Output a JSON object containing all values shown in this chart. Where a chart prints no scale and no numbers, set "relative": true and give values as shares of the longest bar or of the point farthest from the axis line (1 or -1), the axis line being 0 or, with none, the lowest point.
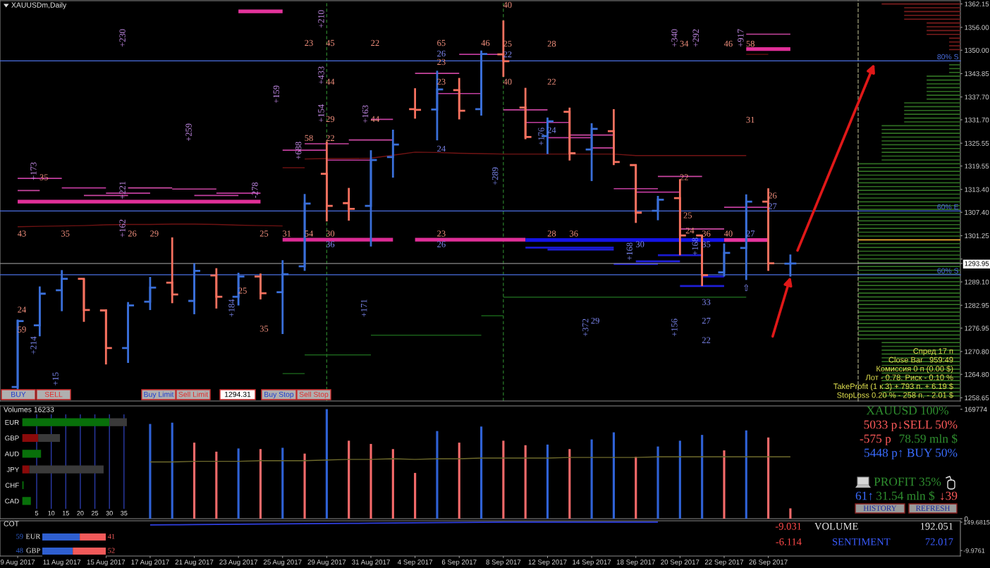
{
  "chart_data": [
    {
      "type": "candlestick",
      "title": "XAUUSDm,Daily",
      "categories": [
        "9 Aug 2017",
        null,
        "11 Aug 2017",
        null,
        "15 Aug 2017",
        null,
        "17 Aug 2017",
        null,
        "21 Aug 2017",
        null,
        "23 Aug 2017",
        null,
        "25 Aug 2017",
        null,
        "29 Aug 2017",
        null,
        "31 Aug 2017",
        null,
        "4 Sep 2017",
        null,
        "6 Sep 2017",
        null,
        "8 Sep 2017",
        null,
        "12 Sep 2017",
        null,
        "14 Sep 2017",
        null,
        "18 Sep 2017",
        null,
        "20 Sep 2017",
        null,
        "22 Sep 2017",
        null,
        "26 Sep 2017",
        null
      ],
      "ohlc": [
        [
          1261.5,
          1279.2,
          1260.8,
          1278.8
        ],
        [
          1277.7,
          1287.9,
          1274.8,
          1286.0
        ],
        [
          1286.9,
          1292.2,
          1281.4,
          1289.9
        ],
        [
          1289.9,
          1289.9,
          1278.6,
          1281.7
        ],
        [
          1281.6,
          1281.9,
          1267.4,
          1271.7
        ],
        [
          1271.7,
          1283.8,
          1267.8,
          1282.9
        ],
        [
          1283.9,
          1290.4,
          1281.7,
          1287.6
        ],
        [
          1288.9,
          1300.8,
          1283.5,
          1285.8
        ],
        [
          1284.1,
          1294.0,
          1280.6,
          1292.0
        ],
        [
          1290.8,
          1292.7,
          1282.1,
          1285.2
        ],
        [
          1285.2,
          1291.5,
          1282.9,
          1290.5
        ],
        [
          1290.5,
          1291.3,
          1284.5,
          1286.1
        ],
        [
          1286.4,
          1294.8,
          1275.4,
          1291.1
        ],
        [
          1293.2,
          1312.2,
          1292.0,
          1309.7
        ],
        [
          1317.5,
          1326.0,
          1305.0,
          1309.1
        ],
        [
          1309.8,
          1313.8,
          1305.2,
          1308.3
        ],
        [
          1309.1,
          1323.7,
          1298.4,
          1321.1
        ],
        [
          1321.9,
          1329.1,
          1316.5,
          1325.2
        ],
        [
          1334.5,
          1340.0,
          1332.0,
          1334.3
        ],
        [
          1334.4,
          1344.6,
          1326.3,
          1339.7
        ],
        [
          1339.5,
          1342.7,
          1331.8,
          1334.1
        ],
        [
          1334.5,
          1349.9,
          1332.8,
          1349.0
        ],
        [
          1348.9,
          1357.8,
          1343.0,
          1347.1
        ],
        [
          1334.9,
          1340.1,
          1326.6,
          1327.2
        ],
        [
          1327.4,
          1332.3,
          1322.7,
          1331.3
        ],
        [
          1333.8,
          1334.9,
          1321.0,
          1322.9
        ],
        [
          1323.9,
          1330.8,
          1315.6,
          1329.3
        ],
        [
          1328.7,
          1334.5,
          1319.8,
          1320.6
        ],
        [
          1319.8,
          1319.8,
          1304.6,
          1307.3
        ],
        [
          1307.8,
          1311.7,
          1305.3,
          1310.7
        ],
        [
          1311.1,
          1316.1,
          1296.1,
          1301.3
        ],
        [
          1301.3,
          1301.3,
          1288.0,
          1290.9
        ],
        [
          1291.6,
          1299.2,
          1290.5,
          1296.7
        ],
        [
          1298.0,
          1312.1,
          1289.6,
          1310.2
        ],
        [
          1310.2,
          1313.7,
          1292.0,
          1294.0
        ],
        [
          1293.9,
          1296.3,
          1290.5,
          1293.95
        ]
      ],
      "colors": [
        "#3a6fd9",
        "#3a6fd9",
        "#3a6fd9",
        "#f6715f",
        "#f6715f",
        "#3a6fd9",
        "#3a6fd9",
        "#f6715f",
        "#3a6fd9",
        "#f6715f",
        "#3a6fd9",
        "#f6715f",
        "#3a6fd9",
        "#3a6fd9",
        "#f6715f",
        "#f6715f",
        "#3a6fd9",
        "#3a6fd9",
        "#f6715f",
        "#3a6fd9",
        "#f6715f",
        "#3a6fd9",
        "#f6715f",
        "#f6715f",
        "#3a6fd9",
        "#f6715f",
        "#3a6fd9",
        "#f6715f",
        "#f6715f",
        "#3a6fd9",
        "#f6715f",
        "#f6715f",
        "#3a6fd9",
        "#3a6fd9",
        "#f6715f",
        "#3a6fd9"
      ],
      "series": [
        {
          "type": "line",
          "color": "#c23f9f",
          "values": [
            1316.3,
            1316.3,
            1316.3,
            null,
            1312.4,
            1312.4,
            1312.4,
            null,
            1311.8,
            1311.8,
            1311.8,
            null,
            1323.7,
            1323.7,
            1323.7,
            null,
            1331.8,
            1331.8,
            null,
            1338.6,
            1338.6,
            1338.6,
            null,
            1331.0,
            1331.0,
            1331.0,
            null,
            1313.6,
            1313.6,
            1313.6,
            null,
            null,
            1308.7,
            1308.7,
            1308.7,
            null
          ]
        },
        {
          "type": "line",
          "color": "#c8459f",
          "values": [
            1313.1,
            1313.1,
            null,
            1311.8,
            1311.8,
            1311.8,
            null,
            1313.5,
            1313.5,
            1313.5,
            null,
            null,
            null,
            1325.4,
            1325.4,
            1325.4,
            null,
            null,
            1343.9,
            1343.9,
            1343.9,
            null,
            1334.3,
            1334.3,
            1334.3,
            null,
            1324.3,
            1324.3,
            null,
            1316.8,
            1316.8,
            1316.8,
            null,
            1354.2,
            1354.2,
            1354.2
          ]
        },
        {
          "type": "line",
          "color": "#bd3a9b",
          "values": [
            null,
            null,
            1313.8,
            1313.8,
            1313.8,
            null,
            null,
            null,
            null,
            1312.4,
            1312.4,
            1312.4,
            null,
            null,
            1321.1,
            1321.1,
            1321.1,
            null,
            null,
            null,
            1348.9,
            1348.9,
            1348.9,
            null,
            1327.0,
            1327.0,
            1327.0,
            null,
            1312.7,
            1312.7,
            1312.7,
            null,
            null,
            null,
            null,
            null
          ]
        },
        {
          "type": "line",
          "color": "#cc4aa3",
          "values": [
            null,
            null,
            null,
            null,
            null,
            1313.8,
            1313.8,
            1313.8,
            null,
            null,
            null,
            null,
            null,
            null,
            null,
            1326.4,
            1326.4,
            1326.4,
            null,
            null,
            null,
            null,
            null,
            null,
            null,
            1327.7,
            1327.7,
            1327.7,
            null,
            null,
            1303.0,
            1303.0,
            1303.0,
            null,
            null,
            null
          ]
        },
        {
          "type": "line",
          "color": "#e02f98",
          "values": [
            1310.2,
            1310.2,
            1310.2,
            1310.2,
            1310.2,
            1310.2,
            1310.2,
            1310.2,
            1310.2,
            1310.2,
            1310.2,
            1310.2,
            null,
            null,
            null,
            null,
            null,
            null,
            1300.2,
            1300.2,
            1300.2,
            1300.2,
            1300.2,
            1300.2,
            null,
            null,
            null,
            null,
            null,
            null,
            null,
            null,
            null,
            1350.3,
            1350.3,
            1350.3
          ]
        },
        {
          "type": "line",
          "color": "#e4339c",
          "values": [
            null,
            null,
            null,
            null,
            null,
            null,
            null,
            null,
            null,
            null,
            1360.2,
            1360.2,
            1360.2,
            null,
            null,
            null,
            null,
            null,
            null,
            null,
            null,
            null,
            null,
            null,
            null,
            null,
            null,
            null,
            null,
            null,
            null,
            null,
            1300.1,
            1300.1,
            1300.1,
            null
          ]
        },
        {
          "type": "line",
          "color": "#dc2b94",
          "values": [
            null,
            null,
            null,
            null,
            null,
            null,
            null,
            null,
            null,
            null,
            null,
            null,
            1300.2,
            1300.2,
            1300.2,
            1300.2,
            1300.2,
            1300.2,
            null,
            null,
            null,
            null,
            null,
            null,
            null,
            null,
            null,
            null,
            null,
            null,
            null,
            null,
            null,
            null,
            null,
            null
          ]
        },
        {
          "type": "line",
          "color": "#1414e6",
          "values": [
            null,
            null,
            null,
            null,
            null,
            null,
            null,
            null,
            null,
            null,
            null,
            null,
            null,
            null,
            null,
            null,
            null,
            null,
            null,
            null,
            null,
            null,
            null,
            1300.1,
            1300.1,
            1300.1,
            1300.1,
            1300.1,
            1300.1,
            1300.1,
            1300.1,
            1300.1,
            1300.1,
            null,
            null,
            null
          ]
        },
        {
          "type": "line",
          "color": "#1a1ad0",
          "values": [
            null,
            null,
            null,
            null,
            null,
            null,
            null,
            null,
            null,
            null,
            null,
            null,
            null,
            null,
            null,
            null,
            null,
            null,
            null,
            null,
            null,
            null,
            null,
            1298.1,
            1298.1,
            1298.1,
            1298.1,
            1298.1,
            null,
            1296.1,
            1296.1,
            1296.1,
            null,
            null,
            null,
            null
          ]
        },
        {
          "type": "line",
          "color": "#1e1ed6",
          "values": [
            null,
            null,
            null,
            null,
            null,
            null,
            null,
            null,
            null,
            null,
            null,
            null,
            null,
            null,
            null,
            null,
            null,
            null,
            null,
            null,
            null,
            null,
            null,
            null,
            1297.6,
            1297.6,
            1297.6,
            1297.6,
            null,
            null,
            1288.0,
            1288.0,
            1288.0,
            null,
            null,
            null
          ]
        },
        {
          "type": "line",
          "color": "#1616ca",
          "values": [
            null,
            null,
            null,
            null,
            null,
            null,
            null,
            null,
            null,
            null,
            null,
            null,
            null,
            null,
            null,
            null,
            null,
            null,
            null,
            null,
            null,
            null,
            null,
            null,
            null,
            null,
            null,
            1293.8,
            1293.8,
            1293.8,
            null,
            1290.5,
            1290.5,
            null,
            null,
            null
          ]
        },
        {
          "type": "line",
          "color": "#2222dc",
          "values": [
            null,
            null,
            null,
            null,
            null,
            null,
            null,
            null,
            null,
            null,
            null,
            null,
            null,
            null,
            null,
            null,
            null,
            null,
            null,
            null,
            null,
            null,
            null,
            null,
            null,
            null,
            null,
            null,
            1294.5,
            1294.5,
            1294.5,
            null,
            null,
            null,
            null,
            null
          ]
        },
        {
          "type": "line",
          "color": "#6e1212",
          "values": [
            1303.6,
            1303.7,
            1303.8,
            1303.9,
            1304.1,
            1304.2,
            1304.2,
            1304.3,
            1304.3,
            1304.2,
            1304.0,
            1303.9,
            1303.8,
            null,
            null,
            null,
            null,
            null,
            null,
            null,
            null,
            null,
            null,
            null,
            null,
            null,
            null,
            null,
            null,
            null,
            null,
            null,
            null,
            null,
            null,
            null
          ]
        },
        {
          "type": "line",
          "color": "#721414",
          "values": [
            null,
            null,
            null,
            null,
            null,
            null,
            null,
            null,
            null,
            null,
            null,
            null,
            null,
            1321.4,
            1321.5,
            1321.5,
            1321.6,
            1322.4,
            1323.2,
            1323.1,
            1322.9,
            1322.8,
            1322.7,
            1322.7,
            1322.7,
            1322.7,
            1322.7,
            1322.7,
            1322.3,
            1322.3,
            1322.3,
            1322.3,
            1322.3,
            1322.3,
            null,
            null
          ]
        },
        {
          "type": "line",
          "color": "#6a1010",
          "values": [
            null,
            null,
            null,
            null,
            null,
            null,
            null,
            null,
            null,
            null,
            null,
            null,
            1319.1,
            1319.1,
            null,
            null,
            null,
            null,
            null,
            null,
            null,
            null,
            null,
            null,
            null,
            null,
            null,
            null,
            null,
            null,
            null,
            null,
            null,
            1348.9,
            1348.9,
            null
          ]
        },
        {
          "type": "line",
          "color": "#1d6e1d",
          "values": [
            null,
            null,
            null,
            null,
            null,
            null,
            null,
            null,
            null,
            null,
            null,
            null,
            1265.0,
            1265.0,
            null,
            null,
            1275.1,
            1275.1,
            1275.1,
            1275.1,
            1275.1,
            1275.1,
            null,
            null,
            null,
            null,
            null,
            null,
            null,
            null,
            null,
            null,
            null,
            null,
            null,
            null
          ]
        },
        {
          "type": "line",
          "color": "#207220",
          "values": [
            null,
            null,
            null,
            null,
            null,
            null,
            null,
            null,
            null,
            null,
            null,
            null,
            null,
            1269.9,
            1269.9,
            1269.9,
            1269.9,
            null,
            null,
            null,
            null,
            null,
            1285.1,
            1285.1,
            1285.1,
            1285.1,
            1285.1,
            1285.1,
            1285.1,
            1285.1,
            1285.1,
            1285.1,
            1285.1,
            1285.1,
            null,
            null
          ]
        },
        {
          "type": "line",
          "color": "#1a6a1a",
          "values": [
            null,
            null,
            null,
            null,
            null,
            null,
            null,
            null,
            null,
            null,
            null,
            null,
            null,
            null,
            null,
            null,
            null,
            null,
            null,
            null,
            null,
            1280.2,
            1280.2,
            null,
            null,
            null,
            null,
            null,
            null,
            null,
            null,
            null,
            null,
            null,
            null,
            null
          ]
        }
      ],
      "ylim": [
        1257.8,
        1363.0
      ],
      "tick_labels": false,
      "ref_lines": [
        {
          "axis": "y",
          "value": 1347.2,
          "label": "80% S",
          "color": "#4a6ee0"
        },
        {
          "axis": "y",
          "value": 1307.75,
          "label": "60% E",
          "color": "#4a6ee0"
        },
        {
          "axis": "y",
          "value": 1290.97,
          "label": "60% S",
          "color": "#4a6ee0"
        },
        {
          "axis": "y",
          "value": 1293.95,
          "color": "#8a8a8a"
        },
        {
          "axis": "x",
          "value": "29 Aug 2017",
          "color": "#2e8b2e",
          "line_style": "dashed"
        },
        {
          "axis": "x",
          "value": "8 Sep 2017",
          "color": "#2e8b2e",
          "line_style": "dashed"
        }
      ],
      "annotations": [
        "+230",
        "+210",
        "+433",
        "+159",
        "+154",
        "+163",
        "+259",
        "+688",
        "+173",
        "+221",
        "-278",
        "+162",
        "+340",
        "+292",
        "+917",
        "+289",
        "+184",
        "+171",
        "+214",
        "+15",
        "+176",
        "+168",
        "+168",
        "+372",
        "+156",
        "23",
        "45",
        "22",
        "65",
        "46",
        "23",
        "44",
        "23",
        "29",
        "44",
        "58",
        "22",
        "35",
        "43",
        "35",
        "26",
        "29",
        "25",
        "31",
        "54",
        "30",
        "23",
        "25",
        "24",
        "59",
        "35",
        "40",
        "25",
        "28",
        "34",
        "46",
        "58",
        "40",
        "22",
        "31",
        "22",
        "26",
        "25",
        "28",
        "36",
        "24",
        "36",
        "40",
        "26",
        "24",
        "36",
        "26",
        "22",
        "24",
        "27",
        "27",
        "30",
        "35",
        "33",
        "27",
        "22",
        "29",
        "⇧"
      ]
    },
    {
      "type": "bar",
      "title": "Volumes 16233",
      "categories": [
        null,
        null,
        null,
        null,
        null,
        null,
        null,
        null,
        null,
        null,
        null,
        null,
        null,
        null,
        null,
        null,
        null,
        null,
        null,
        null,
        null,
        null,
        null,
        null,
        null,
        null,
        null,
        null,
        null,
        null,
        null,
        null,
        null,
        null,
        null,
        null
      ],
      "series": [
        {
          "type": "bar",
          "values": [
            null,
            null,
            null,
            null,
            null,
            null,
            147000,
            149000,
            118000,
            104000,
            109000,
            108000,
            110000,
            101000,
            170000,
            121000,
            116000,
            108000,
            71000,
            136000,
            118000,
            143000,
            121000,
            114000,
            115000,
            108000,
            123000,
            134000,
            96000,
            112000,
            121000,
            130000,
            106000,
            137000,
            126000,
            16000
          ],
          "colors": [
            null,
            null,
            null,
            null,
            null,
            null,
            "#2f62d6",
            "#2f62d6",
            "#f56a6a",
            "#f56a6a",
            "#2f62d6",
            "#f56a6a",
            "#2f62d6",
            "#f56a6a",
            "#2f62d6",
            "#f56a6a",
            "#f56a6a",
            "#f56a6a",
            "#f56a6a",
            "#2f62d6",
            "#f56a6a",
            "#2f62d6",
            "#f56a6a",
            "#f56a6a",
            "#2f62d6",
            "#f56a6a",
            "#2f62d6",
            "#2f62d6",
            "#f56a6a",
            "#2f62d6",
            "#2f62d6",
            "#2f62d6",
            "#f56a6a",
            "#2f62d6",
            "#f56a6a",
            "#f56a6a"
          ]
        },
        {
          "type": "line",
          "color": "#6e6a2c",
          "values": [
            null,
            null,
            null,
            null,
            null,
            null,
            88000,
            88000,
            89000,
            89000,
            89000,
            90000,
            90000,
            90000,
            91000,
            92000,
            92000,
            93000,
            92000,
            93000,
            93000,
            94000,
            94000,
            94000,
            94000,
            95000,
            95000,
            95000,
            95000,
            96000,
            96000,
            96000,
            96000,
            96000,
            96000,
            96000
          ]
        }
      ],
      "ylim": [
        0,
        175000
      ],
      "yticks": [
        0,
        169774
      ],
      "tick_labels": "y"
    },
    {
      "type": "bar",
      "orientation": "horizontal",
      "stacked": true,
      "categories": [
        "EUR",
        "GBP",
        "AUD",
        "JPY",
        "CHF",
        "CAD"
      ],
      "series": [
        {
          "color": "#08700a",
          "values": [
            30,
            null,
            6.5,
            null,
            0.5,
            3
          ]
        },
        {
          "color": "#8a0a0a",
          "values": [
            null,
            5.5,
            null,
            2.5,
            null,
            null
          ]
        },
        {
          "color": "#3a3a3a",
          "values": [
            6,
            7.5,
            null,
            25.5,
            null,
            null
          ]
        }
      ],
      "xlim": [
        0,
        36.5
      ],
      "xticks": [
        5,
        10,
        15,
        20,
        25,
        30,
        35
      ],
      "grid": "x"
    },
    {
      "type": "line",
      "title": "COT",
      "categories": [
        "9 Aug 2017",
        null,
        "11 Aug 2017",
        null,
        "15 Aug 2017",
        null,
        "17 Aug 2017",
        null,
        "21 Aug 2017",
        null,
        "23 Aug 2017",
        null,
        "25 Aug 2017",
        null,
        "29 Aug 2017",
        null,
        "31 Aug 2017",
        null,
        "4 Sep 2017",
        null,
        "6 Sep 2017",
        null,
        "8 Sep 2017",
        null,
        "12 Sep 2017",
        null,
        "14 Sep 2017",
        null,
        "18 Sep 2017",
        null,
        "20 Sep 2017",
        null,
        "22 Sep 2017",
        null,
        "26 Sep 2017",
        null
      ],
      "series": [
        {
          "color": "#2f3fe0",
          "values": [
            null,
            null,
            null,
            null,
            null,
            null,
            134,
            135,
            136,
            137,
            138,
            139,
            140,
            141,
            142,
            143,
            144,
            145,
            146,
            147,
            148,
            149,
            150,
            150,
            150,
            150,
            150,
            150,
            150,
            150,
            null,
            null,
            null,
            null,
            null,
            null
          ]
        }
      ],
      "ylim": [
        -41,
        157.5
      ],
      "yticks": [
        149.6815,
        -9.9761
      ]
    },
    {
      "type": "bar",
      "orientation": "horizontal",
      "stacked": true,
      "categories": [
        "EUR",
        "GBP"
      ],
      "series": [
        {
          "color": "#2f5fd0",
          "values": [
            59,
            48
          ],
          "value_labels": [
            "59",
            "48"
          ]
        },
        {
          "color": "#f25a5a",
          "values": [
            41,
            52
          ],
          "value_labels": [
            "41",
            "52"
          ]
        }
      ]
    },
    {
      "type": "other",
      "annotations": [
        "BUY",
        "SELL",
        "Buy Limit",
        "Sell Limit",
        "1294.31",
        "Buy Stop",
        "Sell Stop"
      ]
    },
    {
      "type": "other",
      "annotations": [
        "Спред 17 п",
        "Close Bar   959:49",
        "Комиссия 0 п (0.00 $)",
        "Лот - 0.78. Риск - 0.10 %",
        "TakeProfit (1 к 3) + 793 п. + 6.19 $",
        "StopLoss 0.20 % - 258 п. - 2.01 $"
      ]
    },
    {
      "type": "other",
      "annotations": [
        "XAUUSD 100%",
        "5033 p↓SELL 50%",
        "-575 p",
        "78.59 mln $",
        "5448 p↑ BUY 50%",
        "PROFIT 35%",
        "61↑",
        "31.54 mln $",
        "↓39",
        "HISTORY",
        "REFRESH"
      ]
    },
    {
      "type": "other",
      "annotations": [
        "-9.031",
        "VOLUME",
        "192.051",
        "-6.114",
        "SENTIMENT",
        "72.017"
      ]
    },
    {
      "type": "bar",
      "orientation": "horizontal",
      "relative": true,
      "x": [
        1259.15,
        1260.15,
        1261.15,
        1262.15,
        1263.15,
        1264.15,
        1265.15,
        1266.15,
        1267.15,
        1268.15,
        1269.15,
        1270.15,
        1271.15,
        1272.15,
        1273.15,
        1274.15,
        1275.15,
        1276.15,
        1277.15,
        1278.15,
        1279.15,
        1280.15,
        1281.15,
        1282.15,
        1283.15,
        1284.15,
        1285.15,
        1286.15,
        1287.15,
        1288.15,
        1289.15,
        1290.15,
        1291.15,
        1292.15,
        1293.15,
        1294.15,
        1295.15,
        1296.15,
        1297.15,
        1298.15,
        1299.15,
        1300.15,
        1301.15,
        1302.15,
        1303.15,
        1304.15,
        1305.15,
        1306.15,
        1307.15,
        1308.15,
        1309.15,
        1310.15,
        1311.15,
        1312.15,
        1313.15,
        1314.15,
        1315.15,
        1316.15,
        1317.15,
        1318.15,
        1319.15,
        1320.15,
        1321.15,
        1322.15,
        1323.15,
        1324.15,
        1325.15,
        1326.15,
        1327.15,
        1328.15,
        1329.15,
        1330.15,
        1331.15,
        1332.15,
        1333.15,
        1334.15,
        1335.15,
        1336.15,
        1337.15,
        1338.15,
        1339.15,
        1340.15,
        1341.15,
        1342.15,
        1343.15,
        1344.15,
        1345.15,
        1346.15,
        1347.15,
        1348.15,
        1349.15,
        1350.15,
        1351.15,
        1352.15,
        1353.15,
        1354.15,
        1355.15,
        1356.15,
        1357.15,
        1358.15,
        1359.15,
        1360.15,
        1361.15,
        1362.15
      ],
      "values": [
        0.77,
        0.77,
        0.77,
        0.77,
        0.77,
        0.77,
        0.77,
        0.77,
        0.77,
        0.77,
        0.77,
        0.77,
        0.77,
        0.77,
        0.77,
        1,
        1,
        1,
        1,
        1,
        1,
        1,
        1,
        1,
        1,
        1,
        1,
        1,
        1,
        1,
        1,
        1,
        1,
        1,
        1,
        1,
        1,
        1,
        1,
        1,
        1,
        1,
        1,
        1,
        1,
        1,
        1,
        1,
        1,
        1,
        1,
        1,
        1,
        1,
        1,
        1,
        1,
        1,
        1,
        1,
        1,
        1,
        0.77,
        0.77,
        0.77,
        0.77,
        0.77,
        0.77,
        0.77,
        0.77,
        0.77,
        0.77,
        0.55,
        0.55,
        0.55,
        0.55,
        0.55,
        0.55,
        0.33,
        0.33,
        0.33,
        0.33,
        0.33,
        0.33,
        0.33,
        0.11,
        0.11,
        0.11,
        null,
        null,
        null,
        0.11,
        0.11,
        0.11,
        0.11,
        0.33,
        0.33,
        0.33,
        0.33,
        0.55,
        0.55,
        0.55,
        0.55,
        0.77
      ],
      "colors": [
        "#2f6e22",
        "#2f6e22",
        "#2f6e22",
        "#2f6e22",
        "#2f6e22",
        "#2f6e22",
        "#2f6e22",
        "#2f6e22",
        "#2f6e22",
        "#2f6e22",
        "#2f6e22",
        "#2f6e22",
        "#2f6e22",
        "#2f6e22",
        "#2f6e22",
        "#2f6e22",
        "#2f6e22",
        "#2f6e22",
        "#2f6e22",
        "#2f6e22",
        "#2f6e22",
        "#2f6e22",
        "#2f6e22",
        "#2f6e22",
        "#2f6e22",
        "#2f6e22",
        "#2f6e22",
        "#2f6e22",
        "#2f6e22",
        "#2f6e22",
        "#2f6e22",
        "#2f6e22",
        "#2f6e22",
        "#2f6e22",
        "#2f6e22",
        "#2f6e22",
        "#2f6e22",
        "#2f6e22",
        "#2f6e22",
        "#2f6e22",
        "#2f6e22",
        "#f0b030",
        "#2f6e22",
        "#2f6e22",
        "#2f6e22",
        "#2f6e22",
        "#2f6e22",
        "#2f6e22",
        "#2f6e22",
        "#2f6e22",
        "#2f6e22",
        "#2f6e22",
        "#2f6e22",
        "#2f6e22",
        "#2f6e22",
        "#2f6e22",
        "#2f6e22",
        "#2f6e22",
        "#2f6e22",
        "#2f6e22",
        "#2f6e22",
        "#2f6e22",
        "#2f6e22",
        "#2f6e22",
        "#2f6e22",
        "#2f6e22",
        "#2f6e22",
        "#2f6e22",
        "#2f6e22",
        "#2f6e22",
        "#2f6e22",
        "#2f6e22",
        "#2f6e22",
        "#2f6e22",
        "#2f6e22",
        "#2f6e22",
        "#2f6e22",
        "#2f6e22",
        "#2f6e22",
        "#2f6e22",
        "#2f6e22",
        "#2f6e22",
        "#2f6e22",
        "#2f6e22",
        "#2f6e22",
        "#2f6e22",
        "#2f6e22",
        "#2f6e22",
        null,
        null,
        null,
        "#7a1c1c",
        "#7a1c1c",
        "#7a1c1c",
        "#7a1c1c",
        "#7a1c1c",
        "#7a1c1c",
        "#7a1c1c",
        "#7a1c1c",
        "#7a1c1c",
        "#7a1c1c",
        "#7a1c1c",
        "#7a1c1c",
        "#7a1c1c"
      ],
      "ylim": [
        1257.8,
        1363.0
      ],
      "tick_labels": "y",
      "yticks": [
        {
          "value": 1362.15,
          "label": "1362.15"
        },
        {
          "value": 1356.0,
          "label": "1356.00"
        },
        {
          "value": 1350.0,
          "label": "1350.00"
        },
        {
          "value": 1343.85,
          "label": "1343.85"
        },
        {
          "value": 1337.7,
          "label": "1337.70"
        },
        {
          "value": 1331.7,
          "label": "1331.70"
        },
        {
          "value": 1325.55,
          "label": "1325.55"
        },
        {
          "value": 1319.55,
          "label": "1319.55"
        },
        {
          "value": 1313.4,
          "label": "1313.40"
        },
        {
          "value": 1307.4,
          "label": "1307.40"
        },
        {
          "value": 1301.25,
          "label": "1301.25"
        },
        {
          "value": 1295.1,
          "label": null
        },
        {
          "value": 1293.95,
          "label": "1293.95"
        },
        {
          "value": 1289.1,
          "label": "1289.10"
        },
        {
          "value": 1282.95,
          "label": "1282.95"
        },
        {
          "value": 1276.95,
          "label": "1276.95"
        },
        {
          "value": 1270.8,
          "label": "1270.80"
        },
        {
          "value": 1264.8,
          "label": "1264.80"
        },
        {
          "value": 1258.65,
          "label": "1258.65"
        }
      ]
    }
  ]
}
